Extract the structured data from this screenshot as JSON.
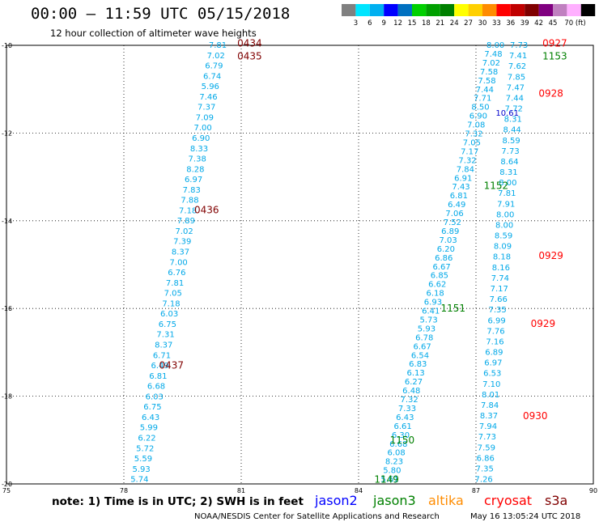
{
  "header": {
    "title": "00:00 – 11:59 UTC 05/15/2018",
    "subtitle": "12 hour collection of altimeter wave heights"
  },
  "legend": {
    "colors": [
      "#808080",
      "#00e5ff",
      "#00b0f0",
      "#0000ff",
      "#0070c0",
      "#00d000",
      "#00a000",
      "#008000",
      "#ffff00",
      "#ffd000",
      "#ff8c00",
      "#ff0000",
      "#c00000",
      "#800000",
      "#800080",
      "#c080c0",
      "#ffb0ff",
      "#000000"
    ],
    "labels": [
      "3",
      "6",
      "9",
      "12",
      "15",
      "18",
      "21",
      "24",
      "27",
      "30",
      "33",
      "36",
      "39",
      "42",
      "45",
      "70 (ft)"
    ]
  },
  "map": {
    "lon_range": [
      75,
      90
    ],
    "lat_range": [
      -20,
      -10
    ],
    "x_ticks": [
      75,
      78,
      81,
      84,
      87,
      90
    ],
    "y_ticks": [
      -10,
      -12,
      -14,
      -16,
      -18,
      -20
    ],
    "x_tick_labels": [
      "75",
      "78",
      "81",
      "84",
      "87",
      "90"
    ],
    "y_tick_labels": [
      "-10",
      "-12",
      "-14",
      "-16",
      "-18",
      "-20"
    ],
    "gridlines": true,
    "tracks": [
      {
        "name": "track-0434-0437",
        "color": "#00a8e8",
        "pts": [
          [
            80.4,
            -10
          ],
          [
            78.4,
            -19.9
          ]
        ],
        "values": [
          "7.81",
          "7.02",
          "6.79",
          "6.74",
          "5.96",
          "7.46",
          "7.37",
          "7.09",
          "7.00",
          "6.90",
          "8.33",
          "7.38",
          "8.28",
          "6.97",
          "7.83",
          "7.88",
          "7.18",
          "7.89",
          "7.02",
          "7.39",
          "8.37",
          "7.00",
          "6.76",
          "7.81",
          "7.05",
          "7.18",
          "6.03",
          "6.75",
          "7.31",
          "8.37",
          "6.71",
          "6.49",
          "6.81",
          "6.68",
          "6.03",
          "6.75",
          "6.43",
          "5.99",
          "6.22",
          "5.72",
          "5.59",
          "5.93",
          "5.74"
        ]
      },
      {
        "name": "track-1149-1153",
        "color": "#00a8e8",
        "pts": [
          [
            87.5,
            -10
          ],
          [
            84.8,
            -19.9
          ]
        ],
        "values": [
          "8.00",
          "7.48",
          "7.02",
          "7.58",
          "7.58",
          "7.44",
          "7.71",
          "8.50",
          "6.90",
          "7.08",
          "7.32",
          "7.05",
          "7.17",
          "7.32",
          "7.84",
          "6.91",
          "7.43",
          "6.81",
          "6.49",
          "7.06",
          "7.52",
          "6.89",
          "7.03",
          "6.20",
          "6.86",
          "6.67",
          "6.85",
          "6.62",
          "6.18",
          "6.93",
          "6.41",
          "5.73",
          "5.93",
          "6.78",
          "6.67",
          "6.54",
          "6.83",
          "6.13",
          "6.27",
          "6.48",
          "7.32",
          "7.33",
          "6.43",
          "6.61",
          "6.30",
          "6.68",
          "6.08",
          "8.23",
          "5.80",
          "5.61"
        ]
      },
      {
        "name": "track-0927-0930",
        "color": "#00a8e8",
        "pts": [
          [
            88.1,
            -10
          ],
          [
            87.2,
            -19.9
          ]
        ],
        "values": [
          "7.73",
          "7.41",
          "7.62",
          "7.85",
          "7.47",
          "7.44",
          "7.72",
          "8.31",
          "8.44",
          "8.59",
          "7.73",
          "8.64",
          "8.31",
          "8.00",
          "7.81",
          "7.91",
          "8.00",
          "8.00",
          "8.59",
          "8.09",
          "8.18",
          "8.16",
          "7.74",
          "7.17",
          "7.66",
          "7.35",
          "6.99",
          "7.76",
          "7.16",
          "6.89",
          "6.97",
          "6.53",
          "7.10",
          "8.01",
          "7.84",
          "8.37",
          "7.94",
          "7.73",
          "7.59",
          "6.86",
          "7.35",
          "7.26"
        ]
      }
    ],
    "highlight": {
      "value": "10.61",
      "color": "#0000cc"
    },
    "pass_labels": [
      {
        "text": "0434",
        "color": "#800000",
        "lon": 80.9,
        "lat": -9.95
      },
      {
        "text": "0435",
        "color": "#800000",
        "lon": 80.9,
        "lat": -10.25
      },
      {
        "text": "0436",
        "color": "#800000",
        "lon": 79.8,
        "lat": -13.75
      },
      {
        "text": "0437",
        "color": "#800000",
        "lon": 78.9,
        "lat": -17.3
      },
      {
        "text": "0927",
        "color": "#ff0000",
        "lon": 88.7,
        "lat": -9.95
      },
      {
        "text": "1153",
        "color": "#008000",
        "lon": 88.7,
        "lat": -10.25
      },
      {
        "text": "0928",
        "color": "#ff0000",
        "lon": 88.6,
        "lat": -11.1
      },
      {
        "text": "1152",
        "color": "#008000",
        "lon": 87.2,
        "lat": -13.2
      },
      {
        "text": "0929",
        "color": "#ff0000",
        "lon": 88.6,
        "lat": -14.8
      },
      {
        "text": "1151",
        "color": "#008000",
        "lon": 86.1,
        "lat": -16.0
      },
      {
        "text": "0929",
        "color": "#ff0000",
        "lon": 88.4,
        "lat": -16.35
      },
      {
        "text": "0930",
        "color": "#ff0000",
        "lon": 88.2,
        "lat": -18.45
      },
      {
        "text": "1150",
        "color": "#008000",
        "lon": 84.8,
        "lat": -19.0
      },
      {
        "text": "1149",
        "color": "#008000",
        "lon": 84.4,
        "lat": -19.9
      }
    ]
  },
  "footer": {
    "note": "note: 1) Time is in UTC; 2) SWH is in feet",
    "satellites": [
      {
        "name": "jason2",
        "color": "#0000ff"
      },
      {
        "name": "jason3",
        "color": "#008000"
      },
      {
        "name": "altika",
        "color": "#ff8c00"
      },
      {
        "name": "cryosat",
        "color": "#ff0000"
      },
      {
        "name": "s3a",
        "color": "#800000"
      }
    ],
    "credit": "NOAA/NESDIS Center for Satellite Applications and Research",
    "generated": "May 16 13:05:24 UTC 2018"
  }
}
